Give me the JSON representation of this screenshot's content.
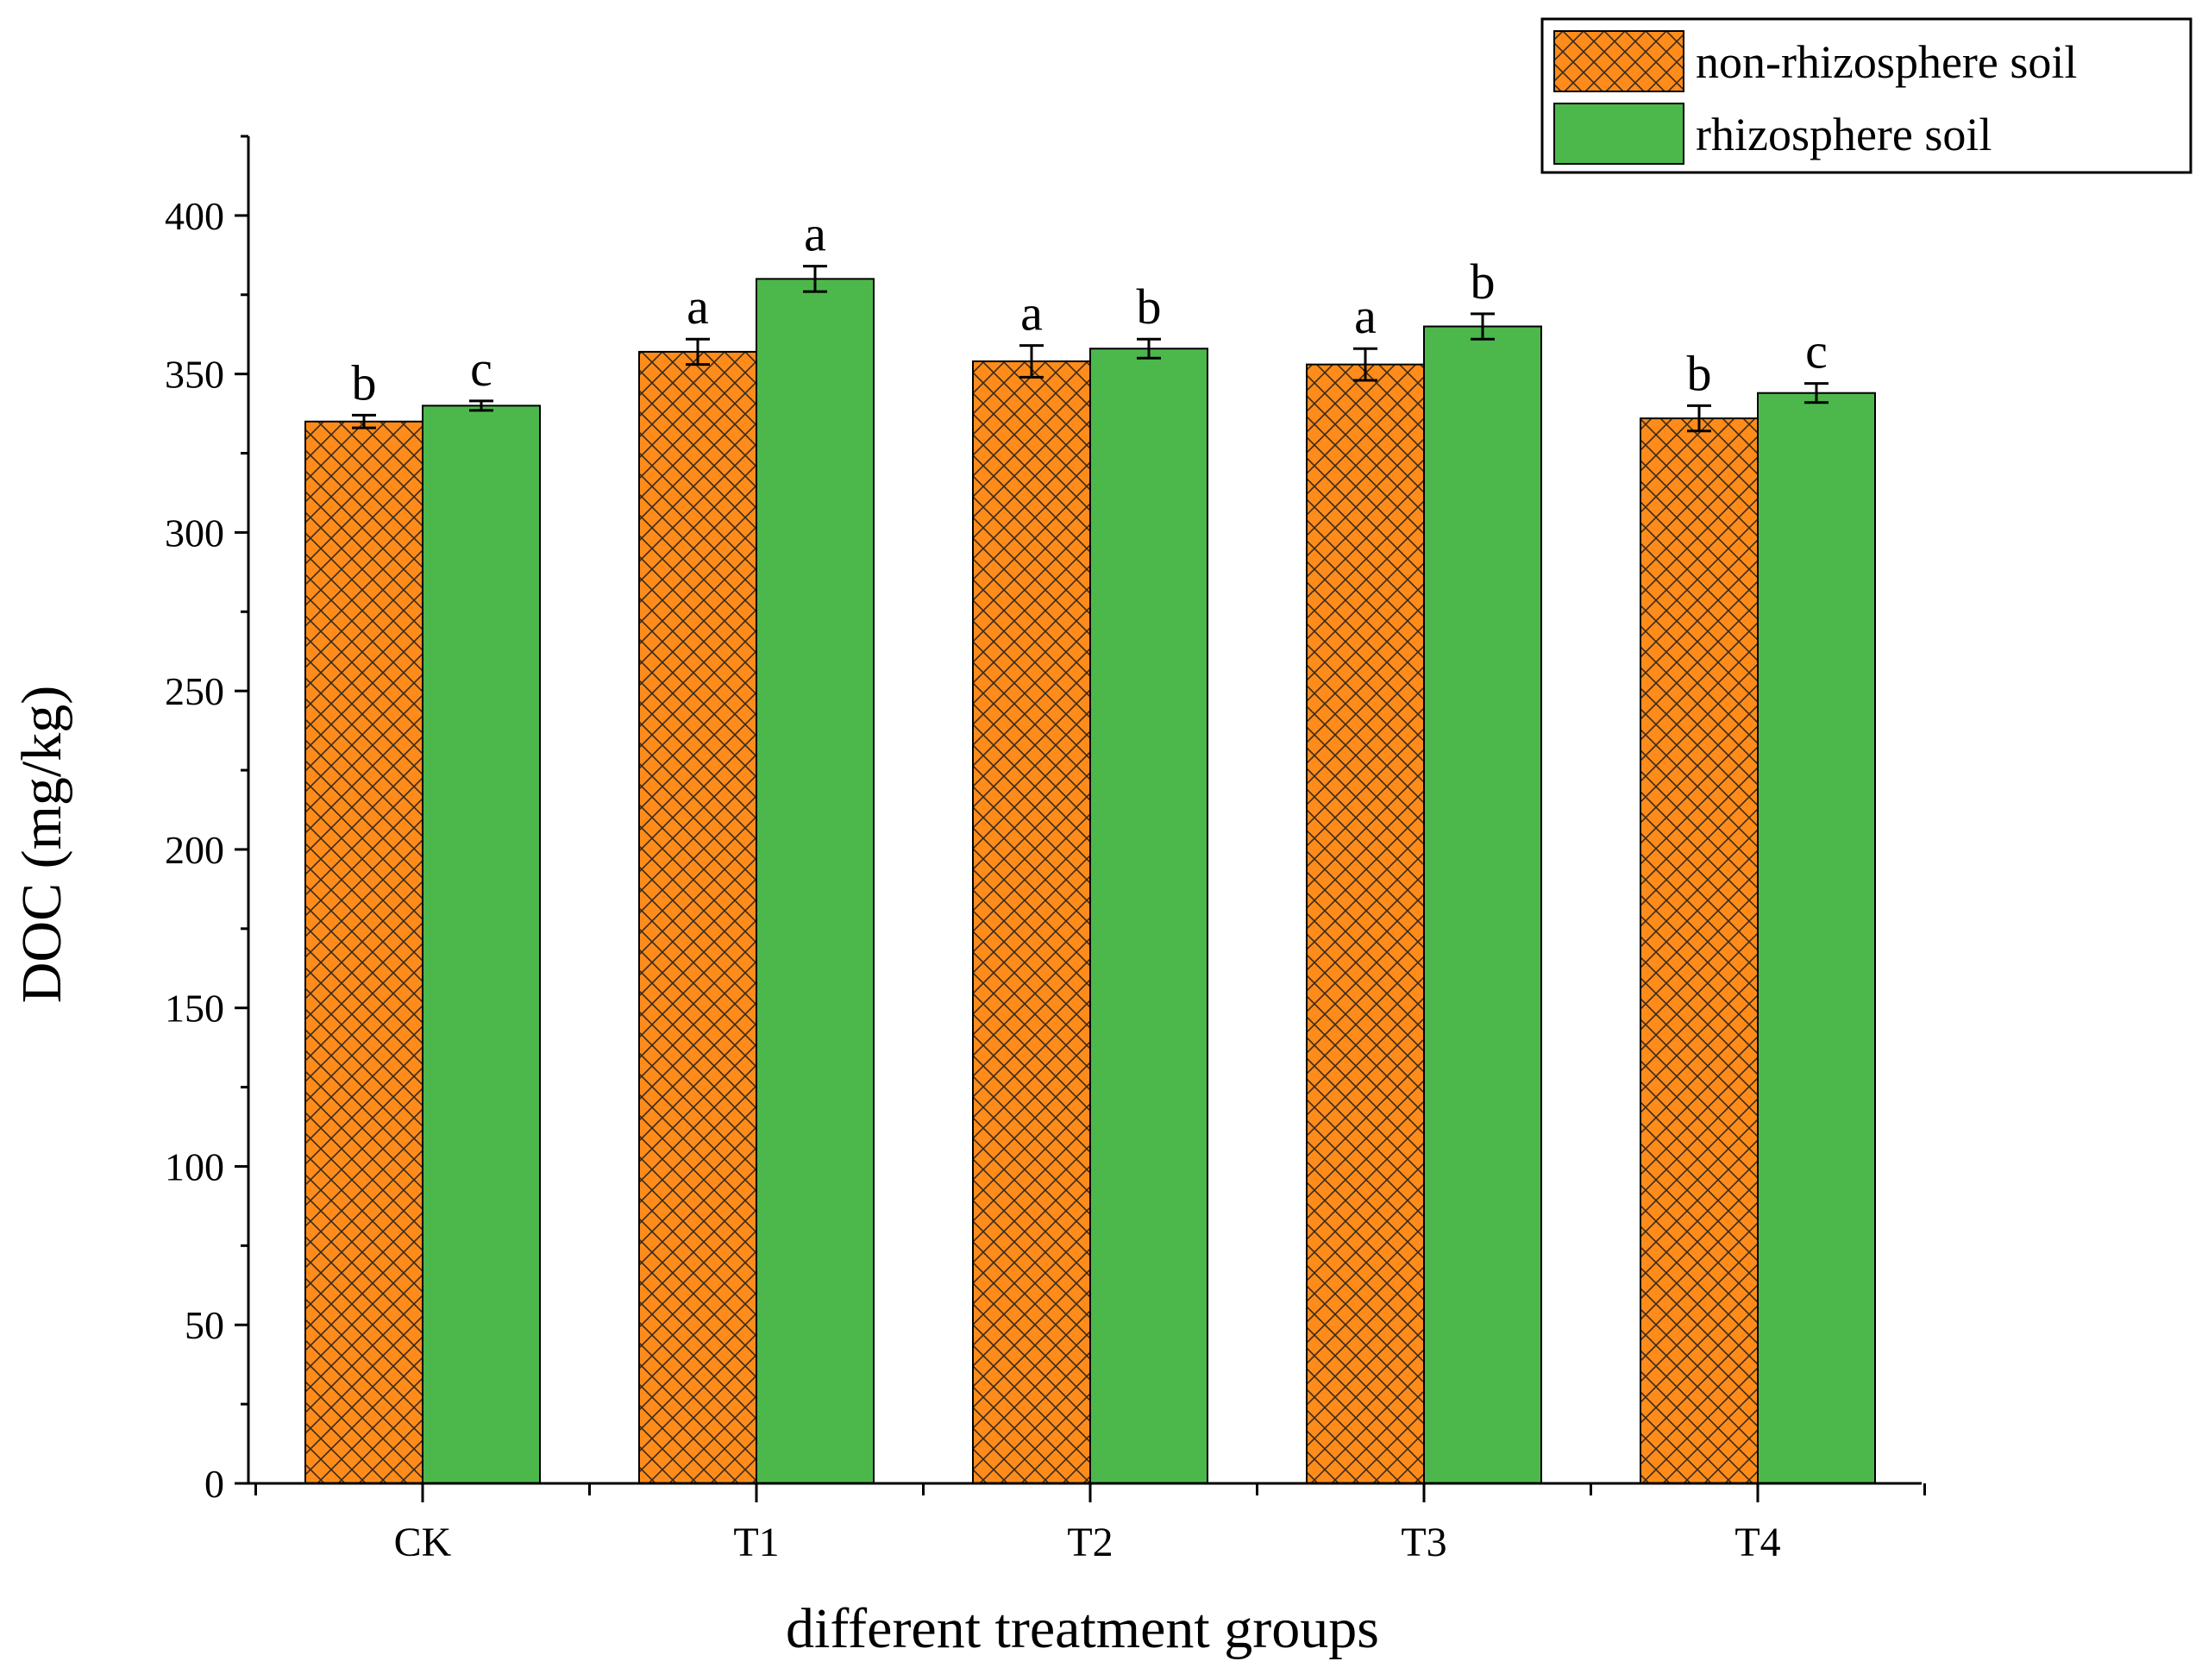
{
  "chart_data": {
    "type": "bar",
    "title": "",
    "xlabel": "different treatment groups",
    "ylabel": "DOC (mg/kg)",
    "ylim": [
      0,
      425
    ],
    "yticks": [
      0,
      50,
      100,
      150,
      200,
      250,
      300,
      350,
      400
    ],
    "categories": [
      "CK",
      "T1",
      "T2",
      "T3",
      "T4"
    ],
    "legend_position": "top-right",
    "series": [
      {
        "name": "non-rhizosphere soil",
        "color": "#FF8C1A",
        "pattern": "crosshatch",
        "values": [
          335,
          357,
          354,
          353,
          336
        ],
        "errors": [
          2,
          4,
          5,
          5,
          4
        ],
        "sig": [
          "b",
          "a",
          "a",
          "a",
          "b"
        ]
      },
      {
        "name": "rhizosphere soil",
        "color": "#4CB84C",
        "pattern": "solid",
        "values": [
          340,
          380,
          358,
          365,
          344
        ],
        "errors": [
          1.5,
          4,
          3,
          4,
          3
        ],
        "sig": [
          "c",
          "a",
          "b",
          "b",
          "c"
        ]
      }
    ]
  }
}
